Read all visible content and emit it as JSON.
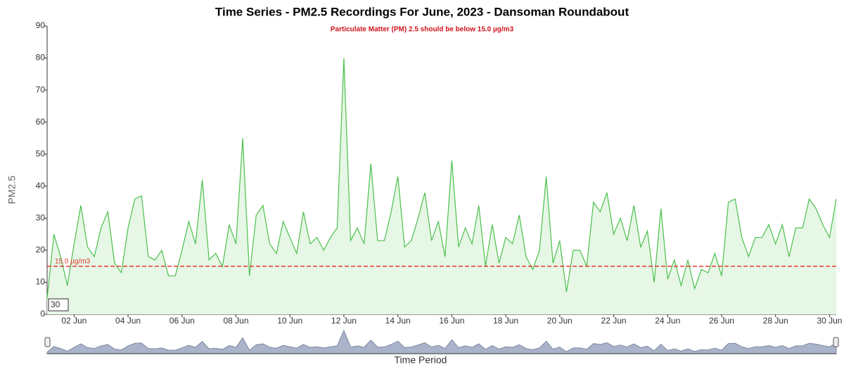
{
  "chart_data": {
    "type": "line",
    "title": "Time Series - PM2.5 Recordings For June, 2023 - Dansoman Roundabout",
    "subtitle": "Particulate Matter (PM) 2.5 should be below 15.0 µg/m3",
    "ylabel": "PM2.5",
    "xlabel": "Time Period",
    "rolling_period": 30,
    "x": [
      1,
      1.25,
      1.5,
      1.75,
      2,
      2.25,
      2.5,
      2.75,
      3,
      3.25,
      3.5,
      3.75,
      4,
      4.25,
      4.5,
      4.75,
      5,
      5.25,
      5.5,
      5.75,
      6,
      6.25,
      6.5,
      6.75,
      7,
      7.25,
      7.5,
      7.75,
      8,
      8.25,
      8.5,
      8.75,
      9,
      9.25,
      9.5,
      9.75,
      10,
      10.25,
      10.5,
      10.75,
      11,
      11.25,
      11.5,
      11.75,
      12,
      12.25,
      12.5,
      12.75,
      13,
      13.25,
      13.5,
      13.75,
      14,
      14.25,
      14.5,
      14.75,
      15,
      15.25,
      15.5,
      15.75,
      16,
      16.25,
      16.5,
      16.75,
      17,
      17.25,
      17.5,
      17.75,
      18,
      18.25,
      18.5,
      18.75,
      19,
      19.25,
      19.5,
      19.75,
      20,
      20.25,
      20.5,
      20.75,
      21,
      21.25,
      21.5,
      21.75,
      22,
      22.25,
      22.5,
      22.75,
      23,
      23.25,
      23.5,
      23.75,
      24,
      24.25,
      24.5,
      24.75,
      25,
      25.25,
      25.5,
      25.75,
      26,
      26.25,
      26.5,
      26.75,
      27,
      27.25,
      27.5,
      27.75,
      28,
      28.25,
      28.5,
      28.75,
      29,
      29.25,
      29.5,
      29.75,
      30,
      30.25
    ],
    "series": [
      {
        "color": "#4cbf4c",
        "fill": "#e6f7e6",
        "values": [
          5,
          25,
          18,
          9,
          22,
          34,
          21,
          18,
          27,
          32,
          16,
          13,
          27,
          36,
          37,
          18,
          17,
          20,
          12,
          12,
          20,
          29,
          22,
          42,
          17,
          19,
          15,
          28,
          22,
          55,
          12,
          31,
          34,
          22,
          19,
          29,
          24,
          19,
          32,
          22,
          24,
          20,
          24,
          27,
          80,
          23,
          27,
          22,
          47,
          23,
          23,
          32,
          43,
          21,
          23,
          30,
          38,
          23,
          29,
          18,
          48,
          21,
          27,
          22,
          34,
          15,
          28,
          16,
          24,
          22,
          31,
          18,
          14,
          20,
          43,
          16,
          23,
          7,
          20,
          20,
          15,
          35,
          32,
          38,
          25,
          30,
          23,
          34,
          21,
          26,
          10,
          33,
          11,
          17,
          9,
          17,
          8,
          14,
          13,
          19,
          12,
          35,
          36,
          24,
          18,
          24,
          24,
          28,
          22,
          28,
          18,
          27,
          27,
          36,
          33,
          28,
          24,
          36
        ]
      }
    ],
    "xlim": [
      1,
      30.25
    ],
    "xticks": [
      {
        "value": 2,
        "label": "02 Jun"
      },
      {
        "value": 4,
        "label": "04 Jun"
      },
      {
        "value": 6,
        "label": "06 Jun"
      },
      {
        "value": 8,
        "label": "08 Jun"
      },
      {
        "value": 10,
        "label": "10 Jun"
      },
      {
        "value": 12,
        "label": "12 Jun"
      },
      {
        "value": 14,
        "label": "14 Jun"
      },
      {
        "value": 16,
        "label": "16 Jun"
      },
      {
        "value": 18,
        "label": "18 Jun"
      },
      {
        "value": 20,
        "label": "20 Jun"
      },
      {
        "value": 22,
        "label": "22 Jun"
      },
      {
        "value": 24,
        "label": "24 Jun"
      },
      {
        "value": 26,
        "label": "26 Jun"
      },
      {
        "value": 28,
        "label": "28 Jun"
      },
      {
        "value": 30,
        "label": "30 Jun"
      }
    ],
    "ylim": [
      0,
      90
    ],
    "yticks": [
      0,
      10,
      20,
      30,
      40,
      50,
      60,
      70,
      80,
      90
    ],
    "threshold": {
      "value": 15,
      "label": "15.0 µg/m3",
      "color": "#e0392b"
    }
  }
}
